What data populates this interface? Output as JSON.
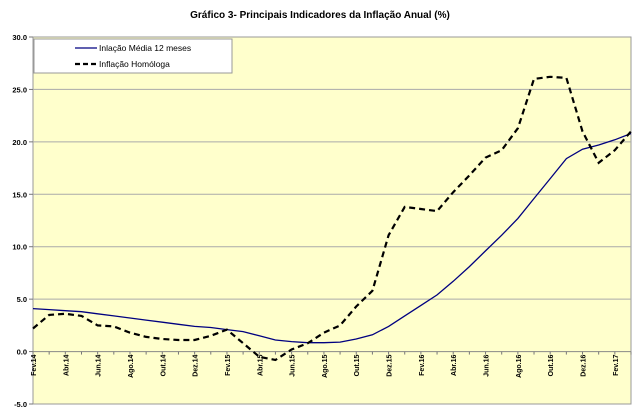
{
  "chart_data": {
    "type": "line",
    "title": "Gráfico 3- Principais Indicadores da Inflação Anual (%)",
    "xlabel": "",
    "ylabel": "",
    "ylim": [
      -5,
      30
    ],
    "yticks": [
      "-5.0",
      "0.0",
      "5.0",
      "10.0",
      "15.0",
      "20.0",
      "25.0",
      "30.0"
    ],
    "grid": "horizontal",
    "legend": "top-left",
    "background": "#FFFFCC",
    "x": [
      "Fev.14",
      "Mar.14",
      "Abr.14",
      "Mai.14",
      "Jun.14",
      "Jul.14",
      "Ago.14",
      "Set.14",
      "Out.14",
      "Nov.14",
      "Dez.14",
      "Jan.15",
      "Fev.15",
      "Mar.15",
      "Abr.15",
      "Mai.15",
      "Jun.15",
      "Jul.15",
      "Ago.15",
      "Set.15",
      "Out.15",
      "Nov.15",
      "Dez.15",
      "Jan.16",
      "Fev.16",
      "Mar.16",
      "Abr.16",
      "Mai.16",
      "Jun.16",
      "Jul.16",
      "Ago.16",
      "Set.16",
      "Out.16",
      "Nov.16",
      "Dez.16",
      "Jan.17",
      "Fev.17",
      "Mar.17"
    ],
    "xtick_labels": [
      "Fev.14",
      "Abr.14",
      "Jun.14",
      "Ago.14",
      "Out.14",
      "Dez.14",
      "Fev.15",
      "Abr.15",
      "Jun.15",
      "Ago.15",
      "Out.15",
      "Dez.15",
      "Fev.16",
      "Abr.16",
      "Jun.16",
      "Ago.16",
      "Out.16",
      "Dez.16",
      "Fev.17"
    ],
    "series": [
      {
        "name": "Inlação Média 12 meses",
        "color": "#000080",
        "style": "solid",
        "values": [
          4.1,
          4.0,
          3.9,
          3.8,
          3.6,
          3.4,
          3.2,
          3.0,
          2.8,
          2.6,
          2.4,
          2.3,
          2.1,
          1.9,
          1.5,
          1.1,
          0.95,
          0.85,
          0.85,
          0.9,
          1.2,
          1.6,
          2.4,
          3.4,
          4.4,
          5.4,
          6.7,
          8.1,
          9.6,
          11.1,
          12.7,
          14.6,
          16.5,
          18.4,
          19.3,
          19.7,
          20.2,
          20.8
        ]
      },
      {
        "name": "Inflação Homóloga",
        "color": "#000000",
        "style": "dashed",
        "values": [
          2.2,
          3.5,
          3.6,
          3.4,
          2.5,
          2.4,
          1.8,
          1.4,
          1.2,
          1.1,
          1.1,
          1.5,
          2.1,
          0.8,
          -0.5,
          -0.8,
          0.2,
          0.8,
          1.8,
          2.5,
          4.3,
          5.8,
          11.1,
          13.8,
          13.6,
          13.4,
          15.2,
          16.8,
          18.5,
          19.2,
          21.3,
          26.0,
          26.2,
          26.1,
          21.0,
          18.0,
          19.2,
          21.0
        ]
      }
    ]
  }
}
